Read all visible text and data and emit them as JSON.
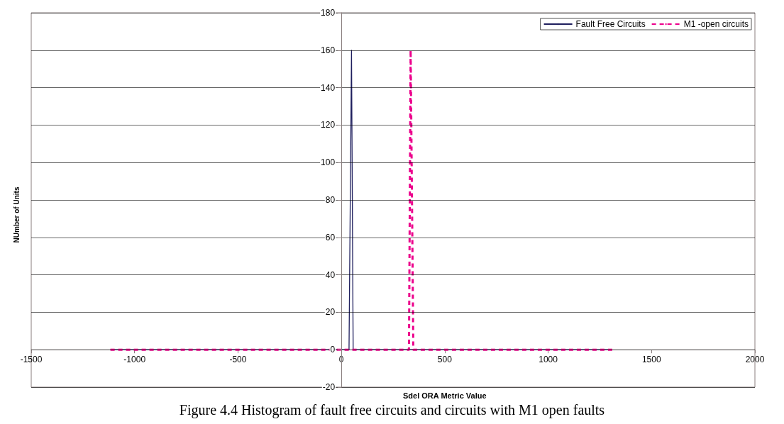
{
  "chart_data": {
    "type": "line",
    "xlabel": "Sdel ORA Metric Value",
    "ylabel": "NUmber of Units",
    "annotations": [
      "Figure 4.4 Histogram of fault free circuits and circuits with M1 open faults"
    ],
    "series": [
      {
        "name": "Fault Free Circuits",
        "color": "#1f1f5e",
        "line_style": "solid",
        "x": [
          -1117,
          37,
          49,
          57,
          1310
        ],
        "values": [
          0,
          0,
          160,
          0,
          0
        ]
      },
      {
        "name": "M1 -open circuits",
        "color": "#ec008c",
        "line_style": "dashed",
        "x": [
          -1117,
          327,
          335,
          348,
          1310
        ],
        "values": [
          0,
          0,
          160,
          0,
          0
        ]
      }
    ],
    "xlim": [
      -1500,
      2000
    ],
    "xticks": [
      -1500,
      -1000,
      -500,
      0,
      500,
      1000,
      1500,
      2000
    ],
    "ylim": [
      -20,
      180
    ],
    "yticks": [
      -20,
      0,
      20,
      40,
      60,
      80,
      100,
      120,
      140,
      160,
      180
    ],
    "grid": "y",
    "legend": "top right",
    "marker": "none"
  }
}
